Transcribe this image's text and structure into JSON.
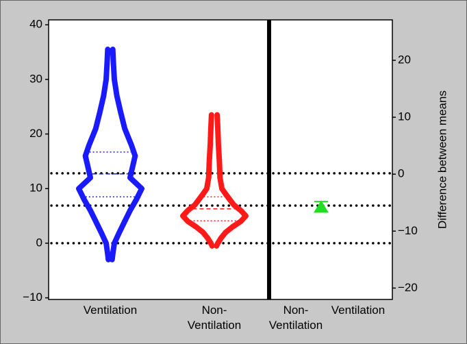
{
  "chart_data": {
    "type": "violin",
    "y2label": "Difference between means",
    "categories": [
      "Ventilation",
      "Non-Ventilation"
    ],
    "ylim": [
      -10.3,
      40.9
    ],
    "yticks": [
      {
        "value": -10,
        "label": "−10"
      },
      0,
      10,
      20,
      30,
      40
    ],
    "y2lim": [
      -22,
      27.1
    ],
    "y2ticks": [
      {
        "value": -20,
        "label": "−20"
      },
      {
        "value": -10,
        "label": "−10"
      },
      0,
      10,
      20
    ],
    "reference_lines": [
      0,
      6.9,
      12.8
    ],
    "violins": [
      {
        "name": "Ventilation",
        "color": "#1a1aff",
        "density_y": [
          35.5,
          33,
          30,
          27,
          24,
          21,
          18,
          16,
          14,
          12,
          10,
          8,
          6,
          4,
          2,
          0,
          -2,
          -3
        ],
        "density": [
          0.08,
          0.1,
          0.13,
          0.21,
          0.33,
          0.46,
          0.67,
          0.79,
          0.71,
          0.63,
          1.0,
          0.83,
          0.63,
          0.46,
          0.29,
          0.13,
          0.08,
          0.06
        ],
        "quartiles": [
          8.5,
          12.7,
          16.7
        ]
      },
      {
        "name": "Non-Ventilation",
        "color": "#ff1a1a",
        "density_y": [
          23.5,
          21,
          18,
          15,
          12,
          10,
          9,
          8,
          7,
          6,
          5,
          4,
          3,
          2,
          1,
          0,
          -0.5
        ],
        "density": [
          0.09,
          0.11,
          0.13,
          0.16,
          0.18,
          0.24,
          0.36,
          0.49,
          0.62,
          0.84,
          1.0,
          0.84,
          0.58,
          0.36,
          0.22,
          0.11,
          0.07
        ],
        "quartiles": [
          4.1,
          6.3,
          8.5
        ]
      }
    ],
    "estimate_categories": [
      "Non-Ventilation",
      "Ventilation"
    ],
    "difference": {
      "value": -5.8,
      "ci": [
        -6.5,
        -4.8
      ],
      "color": "#22dd22",
      "axis": "y2"
    }
  }
}
